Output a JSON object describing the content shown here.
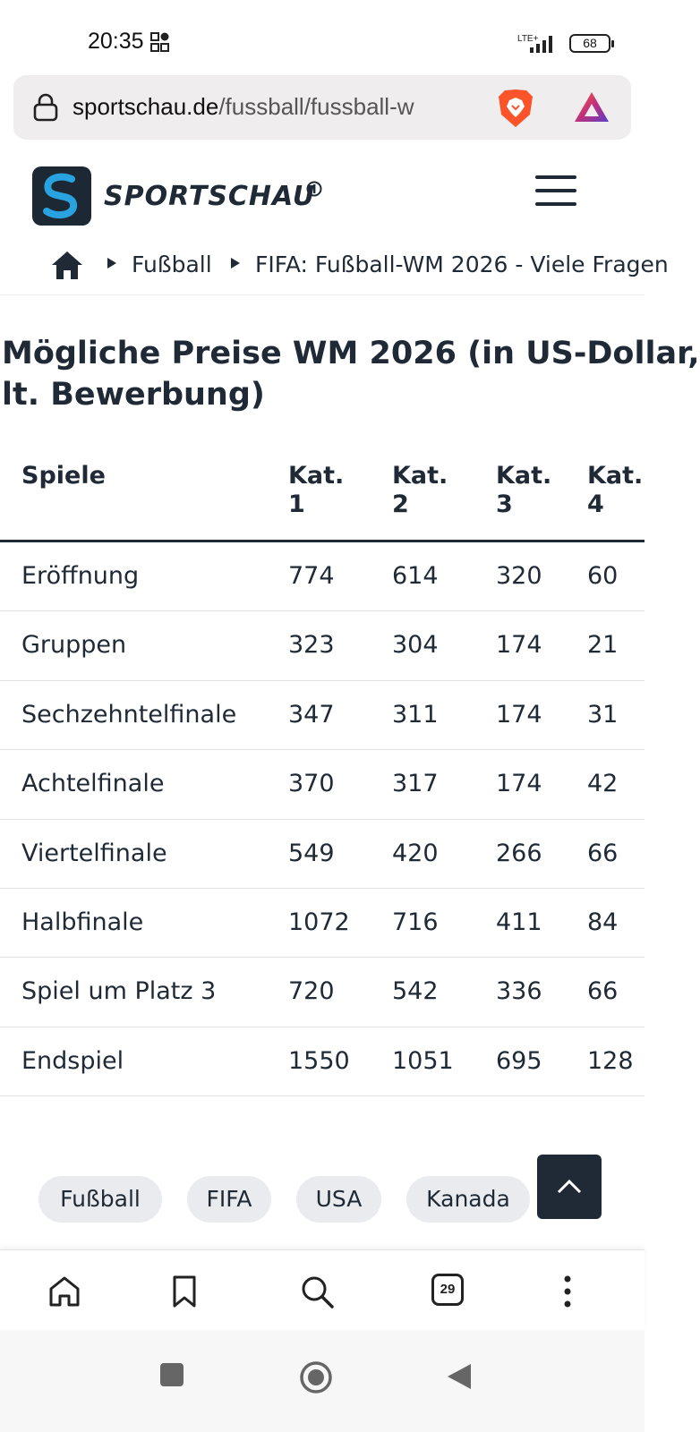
{
  "status_bar": {
    "time": "20:35",
    "network": "LTE+",
    "battery": "68"
  },
  "url_bar": {
    "host": "sportschau.de",
    "path": "/fussball/fussball-w"
  },
  "site": {
    "brand": "SPORTSCHAU"
  },
  "breadcrumb": {
    "items": [
      "Fußball",
      "FIFA: Fußball-WM 2026 - Viele Fragen"
    ]
  },
  "table": {
    "title_line1": "Mögliche Preise WM 2026 (in US-Dollar,",
    "title_line2": "lt. Bewerbung)",
    "headers": [
      {
        "line1": "Spiele",
        "line2": ""
      },
      {
        "line1": "Kat.",
        "line2": "1"
      },
      {
        "line1": "Kat.",
        "line2": "2"
      },
      {
        "line1": "Kat.",
        "line2": "3"
      },
      {
        "line1": "Kat.",
        "line2": "4"
      }
    ],
    "rows": [
      [
        "Eröffnung",
        "774",
        "614",
        "320",
        "60"
      ],
      [
        "Gruppen",
        "323",
        "304",
        "174",
        "21"
      ],
      [
        "Sechzehntelfinale",
        "347",
        "311",
        "174",
        "31"
      ],
      [
        "Achtelfinale",
        "370",
        "317",
        "174",
        "42"
      ],
      [
        "Viertelfinale",
        "549",
        "420",
        "266",
        "66"
      ],
      [
        "Halbfinale",
        "1072",
        "716",
        "411",
        "84"
      ],
      [
        "Spiel um Platz 3",
        "720",
        "542",
        "336",
        "66"
      ],
      [
        "Endspiel",
        "1550",
        "1051",
        "695",
        "128"
      ]
    ]
  },
  "tags": [
    "Fußball",
    "FIFA",
    "USA",
    "Kanada"
  ],
  "toolbar": {
    "tab_count": "29"
  },
  "colors": {
    "text": "#1f2a36",
    "tag_bg": "#e9ebee",
    "brave": "#fb542b"
  }
}
